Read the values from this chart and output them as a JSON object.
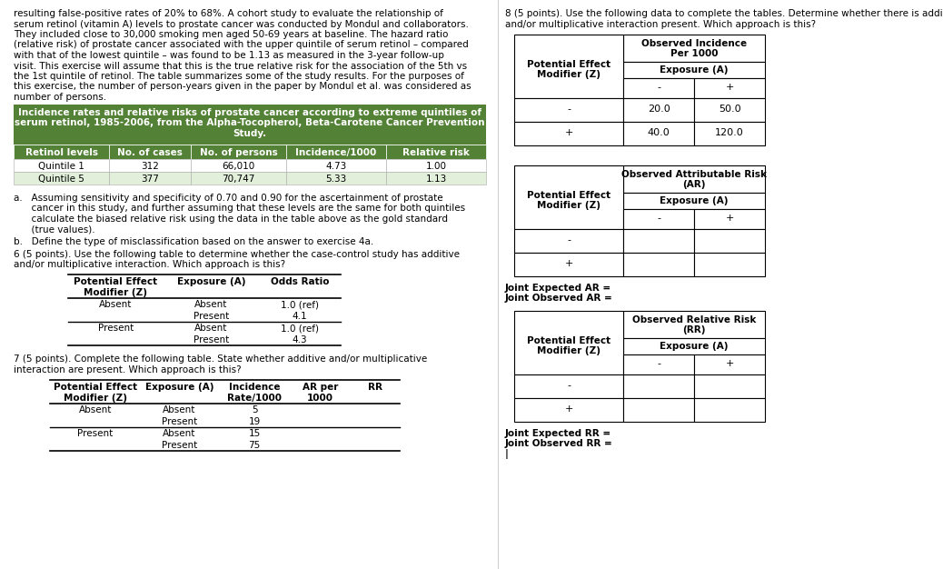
{
  "bg_color": "#ffffff",
  "left_text_lines": [
    "resulting false-positive rates of 20% to 68%. A cohort study to evaluate the relationship of",
    "serum retinol (vitamin A) levels to prostate cancer was conducted by Mondul and collaborators.",
    "They included close to 30,000 smoking men aged 50-69 years at baseline. The hazard ratio",
    "(relative risk) of prostate cancer associated with the upper quintile of serum retinol – compared",
    "with that of the lowest quintile – was found to be 1.13 as measured in the 3-year follow-up",
    "visit. This exercise will assume that this is the true relative risk for the association of the 5th vs",
    "the 1st quintile of retinol. The table summarizes some of the study results. For the purposes of",
    "this exercise, the number of person-years given in the paper by Mondul et al. was considered as",
    "number of persons."
  ],
  "table1_title_line1": "Incidence rates and relative risks of prostate cancer according to extreme quintiles of",
  "table1_title_line2": "serum retinol, 1985-2006, from the Alpha-Tocopherol, Beta-Carotene Cancer Prevention",
  "table1_title_line3": "Study.",
  "table1_header": [
    "Retinol levels",
    "No. of cases",
    "No. of persons",
    "Incidence/1000",
    "Relative risk"
  ],
  "table1_rows": [
    [
      "Quintile 1",
      "312",
      "66,010",
      "4.73",
      "1.00"
    ],
    [
      "Quintile 5",
      "377",
      "70,747",
      "5.33",
      "1.13"
    ]
  ],
  "table1_green": "#538135",
  "table1_light_green": "#e2efda",
  "para_a_lines": [
    "a.   Assuming sensitivity and specificity of 0.70 and 0.90 for the ascertainment of prostate",
    "      cancer in this study, and further assuming that these levels are the same for both quintiles",
    "      calculate the biased relative risk using the data in the table above as the gold standard",
    "      (true values)."
  ],
  "para_b": "b.   Define the type of misclassification based on the answer to exercise 4a.",
  "section6_line1": "6 (5 points). Use the following table to determine whether the case-control study has additive",
  "section6_line2": "and/or multiplicative interaction. Which approach is this?",
  "table6_col_headers": [
    "Potential Effect\nModifier (Z)",
    "Exposure (A)",
    "Odds Ratio"
  ],
  "table6_rows": [
    [
      "Absent",
      "Absent",
      "1.0 (ref)"
    ],
    [
      "Absent",
      "Present",
      "4.1"
    ],
    [
      "Present",
      "Absent",
      "1.0 (ref)"
    ],
    [
      "Present",
      "Present",
      "4.3"
    ]
  ],
  "section7_line1": "7 (5 points). Complete the following table. State whether additive and/or multiplicative",
  "section7_line2": "interaction are present. Which approach is this?",
  "table7_col_headers": [
    "Potential Effect\nModifier (Z)",
    "Exposure (A)",
    "Incidence\nRate/1000",
    "AR per\n1000",
    "RR"
  ],
  "table7_rows": [
    [
      "Absent",
      "Absent",
      "5",
      "",
      ""
    ],
    [
      "Absent",
      "Present",
      "19",
      "",
      ""
    ],
    [
      "Present",
      "Absent",
      "15",
      "",
      ""
    ],
    [
      "Present",
      "Present",
      "75",
      "",
      ""
    ]
  ],
  "section8_line1": "8 (5 points). Use the following data to complete the tables. Determine whether there is additive",
  "section8_line2": "and/or multiplicative interaction present. Which approach is this?",
  "table8a_title": "Observed Incidence\nPer 1000",
  "table8a_subtitle": "Exposure (A)",
  "table8a_col_headers": [
    "-",
    "+"
  ],
  "table8a_values": [
    [
      "20.0",
      "50.0"
    ],
    [
      "40.0",
      "120.0"
    ]
  ],
  "table8b_title": "Observed Attributable Risk\n(AR)",
  "table8b_subtitle": "Exposure (A)",
  "table8b_col_headers": [
    "-",
    "+"
  ],
  "table8b_values": [
    [
      "",
      ""
    ],
    [
      "",
      ""
    ]
  ],
  "joint_ar_line1": "Joint Expected AR =",
  "joint_ar_line2": "Joint Observed AR =",
  "table8c_title": "Observed Relative Risk\n(RR)",
  "table8c_subtitle": "Exposure (A)",
  "table8c_col_headers": [
    "-",
    "+"
  ],
  "table8c_values": [
    [
      "",
      ""
    ],
    [
      "",
      ""
    ]
  ],
  "joint_rr_line1": "Joint Expected RR =",
  "joint_rr_line2": "Joint Observed RR =",
  "joint_rr_line3": "|"
}
